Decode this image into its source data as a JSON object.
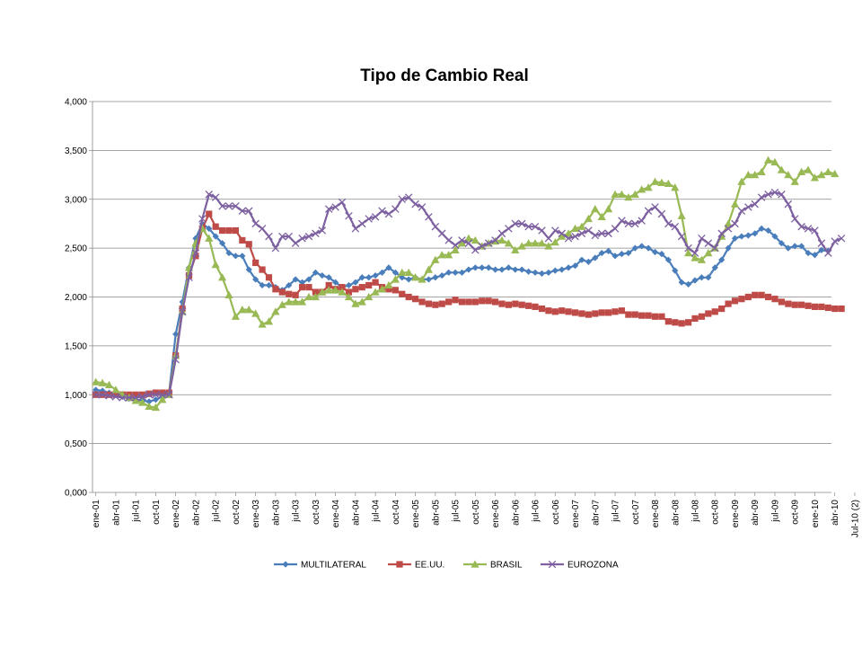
{
  "chart_data": {
    "type": "line",
    "title": "Tipo de Cambio Real",
    "xlabel": "",
    "ylabel": "",
    "ylim": [
      0,
      4
    ],
    "y_ticks": [
      "0,000",
      "0,500",
      "1,000",
      "1,500",
      "2,000",
      "2,500",
      "3,000",
      "3,500",
      "4,000"
    ],
    "x_tick_labels": [
      "ene-01",
      "abr-01",
      "jul-01",
      "oct-01",
      "ene-02",
      "abr-02",
      "jul-02",
      "oct-02",
      "ene-03",
      "abr-03",
      "jul-03",
      "oct-03",
      "ene-04",
      "abr-04",
      "jul-04",
      "oct-04",
      "ene-05",
      "abr-05",
      "jul-05",
      "oct-05",
      "ene-06",
      "abr-06",
      "jul-06",
      "oct-06",
      "ene-07",
      "abr-07",
      "jul-07",
      "oct-07",
      "ene-08",
      "abr-08",
      "jul-08",
      "oct-08",
      "ene-09",
      "abr-09",
      "jul-09",
      "oct-09",
      "ene-10",
      "abr-10",
      "Jul-10 (2)"
    ],
    "grid": "horizontal",
    "legend_position": "bottom",
    "series": [
      {
        "name": "MULTILATERAL",
        "color": "#4a7ebb",
        "marker": "diamond",
        "values": [
          1.05,
          1.04,
          1.02,
          1.0,
          0.98,
          0.96,
          0.95,
          0.94,
          0.93,
          0.95,
          0.98,
          1.02,
          1.62,
          1.95,
          2.3,
          2.6,
          2.75,
          2.7,
          2.62,
          2.55,
          2.45,
          2.42,
          2.42,
          2.28,
          2.18,
          2.12,
          2.12,
          2.1,
          2.07,
          2.12,
          2.18,
          2.15,
          2.18,
          2.25,
          2.22,
          2.2,
          2.15,
          2.1,
          2.12,
          2.15,
          2.2,
          2.2,
          2.22,
          2.25,
          2.3,
          2.25,
          2.2,
          2.18,
          2.2,
          2.18,
          2.18,
          2.2,
          2.22,
          2.25,
          2.25,
          2.25,
          2.28,
          2.3,
          2.3,
          2.3,
          2.28,
          2.28,
          2.3,
          2.28,
          2.28,
          2.26,
          2.25,
          2.24,
          2.25,
          2.27,
          2.28,
          2.3,
          2.32,
          2.38,
          2.36,
          2.4,
          2.45,
          2.47,
          2.42,
          2.44,
          2.45,
          2.5,
          2.52,
          2.5,
          2.46,
          2.44,
          2.38,
          2.27,
          2.15,
          2.13,
          2.17,
          2.2,
          2.2,
          2.3,
          2.38,
          2.5,
          2.6,
          2.62,
          2.63,
          2.65,
          2.7,
          2.68,
          2.62,
          2.55,
          2.5,
          2.52,
          2.52,
          2.45,
          2.43,
          2.48,
          2.47
        ]
      },
      {
        "name": "EE.UU.",
        "color": "#be4b48",
        "marker": "square",
        "values": [
          1.0,
          1.0,
          1.0,
          1.0,
          1.0,
          1.0,
          1.0,
          1.0,
          1.01,
          1.02,
          1.02,
          1.02,
          1.4,
          1.88,
          2.22,
          2.42,
          2.7,
          2.85,
          2.72,
          2.68,
          2.68,
          2.68,
          2.58,
          2.54,
          2.35,
          2.28,
          2.2,
          2.08,
          2.05,
          2.03,
          2.02,
          2.1,
          2.1,
          2.05,
          2.05,
          2.12,
          2.08,
          2.1,
          2.05,
          2.08,
          2.1,
          2.12,
          2.15,
          2.1,
          2.08,
          2.07,
          2.03,
          2.0,
          1.98,
          1.95,
          1.93,
          1.92,
          1.93,
          1.95,
          1.97,
          1.95,
          1.95,
          1.95,
          1.96,
          1.96,
          1.95,
          1.93,
          1.92,
          1.93,
          1.92,
          1.91,
          1.9,
          1.88,
          1.86,
          1.85,
          1.86,
          1.85,
          1.84,
          1.83,
          1.82,
          1.83,
          1.84,
          1.84,
          1.85,
          1.86,
          1.82,
          1.82,
          1.81,
          1.81,
          1.8,
          1.8,
          1.75,
          1.74,
          1.73,
          1.74,
          1.78,
          1.8,
          1.83,
          1.85,
          1.88,
          1.93,
          1.96,
          1.98,
          2.0,
          2.02,
          2.02,
          2.0,
          1.98,
          1.95,
          1.93,
          1.92,
          1.92,
          1.91,
          1.9,
          1.9,
          1.89,
          1.88,
          1.88
        ]
      },
      {
        "name": "BRASIL",
        "color": "#98b954",
        "marker": "triangle",
        "values": [
          1.13,
          1.12,
          1.1,
          1.05,
          1.0,
          0.97,
          0.94,
          0.92,
          0.88,
          0.87,
          0.95,
          1.0,
          1.4,
          1.85,
          2.3,
          2.55,
          2.7,
          2.6,
          2.33,
          2.2,
          2.02,
          1.8,
          1.87,
          1.87,
          1.83,
          1.72,
          1.75,
          1.85,
          1.92,
          1.95,
          1.95,
          1.95,
          2.0,
          2.0,
          2.05,
          2.07,
          2.07,
          2.05,
          2.0,
          1.93,
          1.95,
          2.0,
          2.05,
          2.08,
          2.12,
          2.18,
          2.25,
          2.25,
          2.2,
          2.18,
          2.28,
          2.38,
          2.43,
          2.43,
          2.48,
          2.55,
          2.6,
          2.58,
          2.52,
          2.55,
          2.57,
          2.58,
          2.55,
          2.48,
          2.52,
          2.55,
          2.55,
          2.55,
          2.52,
          2.56,
          2.62,
          2.65,
          2.7,
          2.72,
          2.8,
          2.9,
          2.82,
          2.9,
          3.05,
          3.05,
          3.02,
          3.05,
          3.1,
          3.12,
          3.18,
          3.17,
          3.16,
          3.12,
          2.83,
          2.45,
          2.4,
          2.38,
          2.45,
          2.5,
          2.62,
          2.75,
          2.95,
          3.18,
          3.25,
          3.25,
          3.28,
          3.4,
          3.38,
          3.3,
          3.25,
          3.18,
          3.28,
          3.3,
          3.22,
          3.25,
          3.28,
          3.26
        ]
      },
      {
        "name": "EUROZONA",
        "color": "#7d60a0",
        "marker": "x",
        "values": [
          1.0,
          1.0,
          0.99,
          0.98,
          0.97,
          0.97,
          0.97,
          0.98,
          1.0,
          1.0,
          1.0,
          1.0,
          1.36,
          1.85,
          2.2,
          2.45,
          2.8,
          3.05,
          3.02,
          2.93,
          2.93,
          2.93,
          2.88,
          2.88,
          2.75,
          2.7,
          2.62,
          2.5,
          2.62,
          2.62,
          2.55,
          2.6,
          2.62,
          2.65,
          2.68,
          2.9,
          2.92,
          2.97,
          2.83,
          2.7,
          2.75,
          2.8,
          2.82,
          2.88,
          2.85,
          2.9,
          3.0,
          3.02,
          2.95,
          2.92,
          2.82,
          2.72,
          2.65,
          2.58,
          2.53,
          2.58,
          2.55,
          2.48,
          2.52,
          2.55,
          2.58,
          2.65,
          2.7,
          2.75,
          2.75,
          2.72,
          2.72,
          2.68,
          2.6,
          2.68,
          2.65,
          2.6,
          2.62,
          2.65,
          2.68,
          2.63,
          2.65,
          2.65,
          2.7,
          2.78,
          2.75,
          2.75,
          2.78,
          2.88,
          2.92,
          2.85,
          2.75,
          2.72,
          2.62,
          2.5,
          2.45,
          2.6,
          2.55,
          2.5,
          2.65,
          2.7,
          2.75,
          2.88,
          2.92,
          2.95,
          3.02,
          3.05,
          3.07,
          3.05,
          2.95,
          2.8,
          2.72,
          2.7,
          2.68,
          2.55,
          2.45,
          2.57,
          2.6
        ]
      }
    ]
  }
}
